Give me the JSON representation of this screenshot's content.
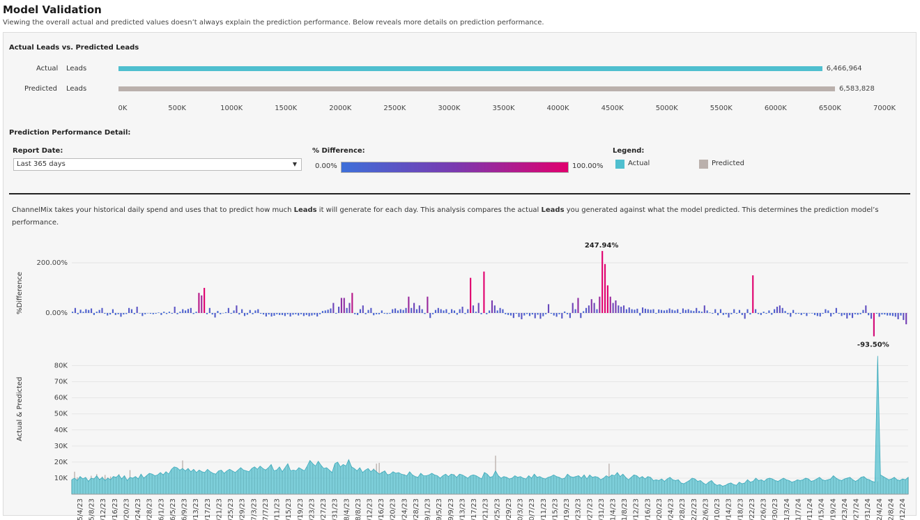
{
  "header": {
    "title": "Model Validation",
    "subtitle": "Viewing the overall actual and predicted values doesn’t always explain the prediction performance. Below reveals more details on prediction performance."
  },
  "summary_chart": {
    "title": "Actual Leads vs. Predicted Leads",
    "rows": [
      {
        "label_a": "Actual",
        "label_b": "Leads",
        "value": 6466964,
        "display": "6,466,964",
        "color": "#4fbfcf"
      },
      {
        "label_a": "Predicted",
        "label_b": "Leads",
        "value": 6583828,
        "display": "6,583,828",
        "color": "#bab0ac"
      }
    ],
    "ticks": [
      "0K",
      "500K",
      "1000K",
      "1500K",
      "2000K",
      "2500K",
      "3000K",
      "3500K",
      "4000K",
      "4500K",
      "5000K",
      "5500K",
      "6000K",
      "6500K",
      "7000K"
    ],
    "max": 7000000
  },
  "detail": {
    "title": "Prediction Performance Detail:",
    "report_date_label": "Report Date:",
    "report_date_value": "Last 365 days",
    "pct_diff_label": "% Difference:",
    "pct_min": "0.00%",
    "pct_max": "100.00%",
    "legend_label": "Legend:",
    "legend_actual": "Actual",
    "legend_predicted": "Predicted",
    "actual_color": "#4fbfcf",
    "predicted_color": "#bab0ac"
  },
  "description": {
    "part1": "ChannelMix takes your historical daily spend and uses that to predict how much ",
    "bold1": "Leads",
    "part2": " it will generate for each day. This analysis compares the actual ",
    "bold2": "Leads",
    "part3": " you generated against what the model predicted. This determines the prediction model’s performance."
  },
  "chart_data": [
    {
      "type": "bar",
      "ylabel": "%Difference",
      "yticks": [
        "200.00%",
        "0.00%"
      ],
      "annotations": {
        "max": "247.94%",
        "min": "-93.50%"
      },
      "values": [
        5,
        20,
        -5,
        13,
        5,
        15,
        12,
        18,
        -8,
        5,
        12,
        20,
        -3,
        -10,
        -6,
        15,
        -8,
        -5,
        -15,
        -6,
        -4,
        20,
        15,
        -5,
        25,
        -2,
        -12,
        -5,
        0,
        -3,
        -5,
        -3,
        2,
        -8,
        5,
        -4,
        5,
        -3,
        25,
        -5,
        5,
        15,
        10,
        16,
        20,
        -4,
        5,
        80,
        70,
        100,
        -5,
        20,
        -6,
        -18,
        8,
        -5,
        0,
        3,
        20,
        -3,
        10,
        30,
        -6,
        15,
        -12,
        -7,
        12,
        -5,
        10,
        15,
        -3,
        -6,
        -14,
        -6,
        -14,
        -11,
        -5,
        -8,
        -8,
        -12,
        -5,
        -14,
        -7,
        -5,
        -10,
        -5,
        -12,
        -8,
        -13,
        -10,
        -7,
        -14,
        -5,
        8,
        10,
        13,
        18,
        40,
        -3,
        25,
        60,
        60,
        20,
        40,
        80,
        -5,
        -8,
        15,
        30,
        -5,
        12,
        20,
        -9,
        -5,
        -5,
        10,
        -3,
        -4,
        -3,
        15,
        18,
        10,
        15,
        12,
        20,
        65,
        20,
        40,
        15,
        30,
        15,
        -4,
        65,
        -20,
        -5,
        12,
        20,
        15,
        10,
        15,
        -4,
        15,
        10,
        -7,
        15,
        25,
        -4,
        15,
        140,
        30,
        5,
        40,
        -5,
        165,
        -5,
        10,
        50,
        30,
        10,
        20,
        15,
        -5,
        -8,
        -10,
        -20,
        -3,
        -16,
        -25,
        -10,
        -4,
        -12,
        -6,
        -21,
        -7,
        -23,
        -13,
        -5,
        35,
        -3,
        -10,
        -15,
        -5,
        -22,
        6,
        -5,
        -20,
        40,
        15,
        60,
        -20,
        7,
        20,
        30,
        55,
        40,
        15,
        65,
        247,
        195,
        110,
        65,
        40,
        50,
        30,
        25,
        30,
        15,
        22,
        15,
        13,
        17,
        -10,
        22,
        17,
        15,
        13,
        15,
        -3,
        14,
        12,
        10,
        12,
        18,
        13,
        10,
        15,
        -3,
        18,
        12,
        15,
        10,
        8,
        20,
        8,
        5,
        30,
        10,
        2,
        -3,
        15,
        -9,
        15,
        -8,
        -5,
        -18,
        -5,
        15,
        -3,
        12,
        -8,
        -23,
        15,
        -6,
        150,
        15,
        -4,
        -8,
        5,
        -3,
        10,
        -7,
        15,
        25,
        30,
        20,
        8,
        -5,
        -15,
        12,
        -4,
        -3,
        -8,
        -3,
        -12,
        0,
        -2,
        -8,
        -12,
        -14,
        -3,
        15,
        10,
        -14,
        -4,
        20,
        -3,
        -12,
        -8,
        -22,
        -9,
        -20,
        -5,
        -7,
        -5,
        12,
        30,
        -9,
        -23,
        -93,
        -3,
        -15,
        -6,
        -6,
        -10,
        -10,
        -12,
        -15,
        -25,
        -10,
        -28,
        -45
      ]
    },
    {
      "type": "area",
      "ylabel": "Actual & Predicted",
      "yticks": [
        "80K",
        "70K",
        "60K",
        "50K",
        "40K",
        "30K",
        "20K",
        "10K"
      ],
      "ylim": [
        0,
        85000
      ],
      "x_labels": [
        "5/4/23",
        "5/8/23",
        "5/12/23",
        "5/16/23",
        "5/20/23",
        "5/24/23",
        "5/28/23",
        "6/1/23",
        "6/5/23",
        "6/9/23",
        "6/13/23",
        "6/17/23",
        "6/21/23",
        "6/25/23",
        "6/29/23",
        "7/3/23",
        "7/7/23",
        "7/11/23",
        "7/15/23",
        "7/19/23",
        "7/23/23",
        "7/27/23",
        "7/31/23",
        "8/4/23",
        "8/8/23",
        "8/12/23",
        "8/16/23",
        "8/20/23",
        "8/24/23",
        "8/28/23",
        "9/1/23",
        "9/5/23",
        "9/9/23",
        "9/13/23",
        "9/17/23",
        "9/21/23",
        "9/25/23",
        "9/29/23",
        "10/3/23",
        "10/7/23",
        "10/11/23",
        "10/15/23",
        "10/19/23",
        "10/23/23",
        "10/27/23",
        "10/31/23",
        "11/4/23",
        "11/8/23",
        "11/12/23",
        "11/16/23",
        "11/20/23",
        "11/24/23",
        "11/28/23",
        "12/2/23",
        "12/6/23",
        "12/10/23",
        "12/14/23",
        "12/18/23",
        "12/22/23",
        "12/26/23",
        "12/30/23",
        "1/3/24",
        "1/7/24",
        "1/11/24",
        "1/15/24",
        "1/19/24",
        "1/23/24",
        "1/27/24",
        "1/31/24",
        "2/4/24",
        "2/8/24",
        "2/12/24"
      ],
      "series": [
        {
          "name": "Actual",
          "values": [
            9000,
            10000,
            8500,
            11000,
            9500,
            10500,
            8000,
            10000,
            9500,
            11500,
            9000,
            10500,
            8500,
            10000,
            9000,
            11000,
            10500,
            12000,
            9500,
            11500,
            8500,
            10500,
            10000,
            11000,
            9500,
            12500,
            10000,
            11500,
            13000,
            12500,
            11500,
            12000,
            13500,
            12000,
            14000,
            12500,
            15500,
            17000,
            16500,
            15000,
            16000,
            14500,
            16000,
            14000,
            15500,
            13500,
            15000,
            14000,
            13500,
            15500,
            14000,
            13000,
            12500,
            14500,
            15000,
            13000,
            14500,
            15500,
            14500,
            13500,
            15000,
            16500,
            15000,
            14500,
            14000,
            16000,
            17000,
            15500,
            17500,
            16000,
            15000,
            16500,
            18500,
            14500,
            15000,
            17000,
            14000,
            16500,
            19000,
            14500,
            15000,
            14500,
            16500,
            15500,
            14500,
            17500,
            21000,
            19000,
            17500,
            20500,
            18000,
            16000,
            16500,
            15000,
            13500,
            19000,
            20000,
            17000,
            18500,
            17500,
            21500,
            17000,
            16000,
            14500,
            16500,
            13500,
            15000,
            16000,
            14000,
            15500,
            14000,
            12500,
            13500,
            14500,
            12000,
            12500,
            14000,
            13000,
            13500,
            12500,
            12000,
            11500,
            14000,
            12000,
            11000,
            10500,
            13000,
            11500,
            11500,
            12000,
            13000,
            12000,
            11500,
            10000,
            11500,
            12500,
            11000,
            12500,
            12000,
            10500,
            12500,
            12000,
            11000,
            10000,
            11500,
            12000,
            11500,
            10500,
            9500,
            13500,
            12500,
            10500,
            11000,
            14500,
            11500,
            10000,
            11000,
            10500,
            9500,
            10000,
            11500,
            10500,
            11000,
            10000,
            9500,
            11500,
            10000,
            12500,
            10500,
            11000,
            10000,
            9500,
            10500,
            11000,
            12000,
            11000,
            10500,
            9500,
            10000,
            12500,
            11000,
            10500,
            11000,
            11500,
            10000,
            12000,
            9500,
            12000,
            10500,
            11000,
            10500,
            9000,
            10000,
            11500,
            10500,
            12000,
            11500,
            13500,
            11000,
            12500,
            10500,
            9000,
            10500,
            12000,
            11500,
            10000,
            11000,
            9500,
            11000,
            10500,
            8500,
            9000,
            8500,
            9500,
            8000,
            9500,
            10500,
            9000,
            8500,
            9000,
            7000,
            6500,
            7500,
            8500,
            10000,
            9500,
            8000,
            8500,
            7000,
            6000,
            7500,
            8500,
            6500,
            5500,
            6000,
            5000,
            5500,
            6500,
            7000,
            6000,
            5500,
            7500,
            6500,
            7000,
            9000,
            7500,
            8000,
            10000,
            8500,
            9000,
            8000,
            9500,
            10000,
            9500,
            8500,
            8000,
            9000,
            10000,
            9000,
            8500,
            7500,
            8000,
            9000,
            8500,
            9000,
            10000,
            9500,
            8000,
            8500,
            9500,
            10500,
            9000,
            8500,
            9000,
            9500,
            11500,
            10000,
            9000,
            8500,
            9500,
            10000,
            10500,
            9000,
            8000,
            9000,
            10500,
            11000,
            9500,
            9000,
            8000,
            7500,
            86000,
            12000,
            11000,
            10000,
            9000,
            9500,
            10500,
            9000,
            8500,
            9500,
            9000,
            10500
          ]
        },
        {
          "name": "Predicted",
          "values": [
            9000,
            14000,
            10500,
            11000,
            9000,
            10000,
            8500,
            11500,
            10000,
            12500,
            9500,
            11000,
            12000,
            10500,
            11000,
            11000,
            10500,
            12500,
            10000,
            11500,
            9000,
            15000,
            10000,
            10500,
            9500,
            12000,
            10500,
            11500,
            13000,
            12000,
            11500,
            11500,
            13000,
            12500,
            13500,
            12000,
            15000,
            16500,
            16000,
            15000,
            21000,
            14500,
            16000,
            14000,
            15500,
            13500,
            15000,
            14000,
            13500,
            15000,
            13500,
            13000,
            12500,
            14000,
            14500,
            13000,
            14000,
            15000,
            14500,
            13500,
            14500,
            16000,
            14500,
            14000,
            14000,
            15500,
            16500,
            15000,
            17000,
            15500,
            15500,
            16000,
            18000,
            14000,
            15000,
            16500,
            14000,
            16000,
            18500,
            14000,
            14500,
            14000,
            16000,
            15000,
            14000,
            17000,
            20500,
            18500,
            17000,
            20000,
            17500,
            15500,
            16000,
            14500,
            13500,
            18500,
            19500,
            17000,
            18000,
            17000,
            21000,
            17500,
            15500,
            14500,
            16000,
            13500,
            14500,
            15500,
            14000,
            16000,
            19000,
            19500,
            14000,
            14500,
            12500,
            12000,
            13500,
            12500,
            13000,
            12000,
            12500,
            11500,
            13500,
            12000,
            11000,
            10500,
            12500,
            11000,
            11500,
            11500,
            12500,
            12000,
            11000,
            10000,
            11000,
            12000,
            11000,
            12000,
            12500,
            10500,
            12000,
            11500,
            11000,
            10000,
            11000,
            11500,
            11500,
            10500,
            9500,
            13500,
            12000,
            10500,
            11000,
            24000,
            11500,
            10000,
            11000,
            10500,
            9500,
            10000,
            11000,
            10500,
            10500,
            10000,
            9500,
            11000,
            10000,
            12000,
            10500,
            10500,
            10000,
            9500,
            10000,
            11000,
            11500,
            11000,
            10500,
            9500,
            10000,
            12000,
            11000,
            10000,
            11000,
            11500,
            10000,
            12000,
            9500,
            11500,
            10500,
            11000,
            10000,
            9000,
            10000,
            11000,
            19000,
            11500,
            11000,
            13000,
            11000,
            12000,
            10500,
            9000,
            10500,
            12000,
            11500,
            10000,
            11000,
            9500,
            11000,
            10500,
            8500,
            9000,
            8500,
            9500,
            8000,
            9500,
            10000,
            9000,
            8500,
            9000,
            7000,
            6500,
            7500,
            8500,
            9500,
            9500,
            8000,
            8500,
            7000,
            6000,
            7500,
            8000,
            6500,
            5500,
            6000,
            5000,
            5500,
            6500,
            7000,
            6000,
            5500,
            7500,
            6500,
            7000,
            8500,
            7500,
            8000,
            9500,
            8500,
            9000,
            8000,
            9500,
            10000,
            9500,
            8500,
            8000,
            9000,
            10000,
            9000,
            8500,
            7500,
            8000,
            9000,
            8500,
            9000,
            10000,
            9500,
            8000,
            8500,
            9500,
            10000,
            9000,
            8500,
            9000,
            9500,
            11000,
            10000,
            9000,
            8500,
            9500,
            10000,
            10500,
            9000,
            8000,
            9000,
            10500,
            11000,
            9500,
            9000,
            8000,
            7500,
            8000,
            12000,
            11000,
            10000,
            9000,
            9500,
            10500,
            9000,
            8500,
            9500,
            9000,
            10500
          ]
        }
      ]
    }
  ]
}
